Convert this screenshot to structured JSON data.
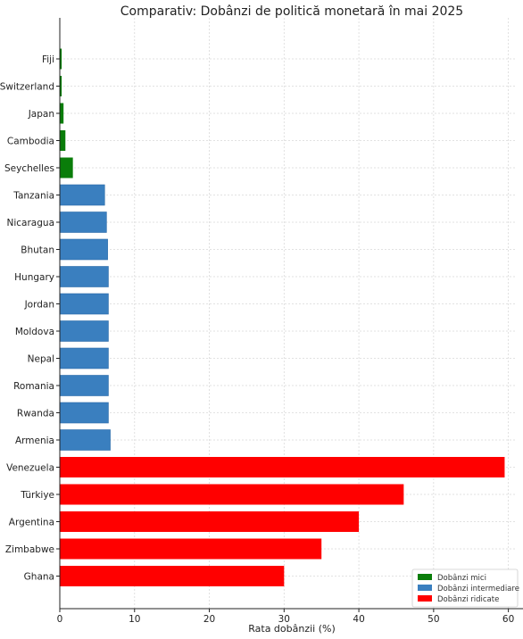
{
  "chart_data": {
    "type": "bar",
    "orientation": "horizontal",
    "title": "Comparativ: Dobânzi de politică monetară în mai 2025",
    "xlabel": "Rata dobânzii (%)",
    "ylabel": "",
    "xlim": [
      0,
      61
    ],
    "xticks": [
      "0",
      "10",
      "20",
      "30",
      "40",
      "50",
      "60"
    ],
    "grid": true,
    "legend_position": "bottom-right",
    "colors": {
      "mici": "#0a7d0a",
      "intermediare": "#3a7fbf",
      "ridicate": "#ff0000"
    },
    "legend": [
      {
        "label": "Dobânzi mici",
        "group": "mici"
      },
      {
        "label": "Dobânzi intermediare",
        "group": "intermediare"
      },
      {
        "label": "Dobânzi ridicate",
        "group": "ridicate"
      }
    ],
    "bars": [
      {
        "country": "Fiji",
        "value": 0.25,
        "group": "mici"
      },
      {
        "country": "Switzerland",
        "value": 0.25,
        "group": "mici"
      },
      {
        "country": "Japan",
        "value": 0.5,
        "group": "mici"
      },
      {
        "country": "Cambodia",
        "value": 0.75,
        "group": "mici"
      },
      {
        "country": "Seychelles",
        "value": 1.75,
        "group": "mici"
      },
      {
        "country": "Tanzania",
        "value": 6.0,
        "group": "intermediare"
      },
      {
        "country": "Nicaragua",
        "value": 6.25,
        "group": "intermediare"
      },
      {
        "country": "Bhutan",
        "value": 6.4,
        "group": "intermediare"
      },
      {
        "country": "Hungary",
        "value": 6.5,
        "group": "intermediare"
      },
      {
        "country": "Jordan",
        "value": 6.5,
        "group": "intermediare"
      },
      {
        "country": "Moldova",
        "value": 6.5,
        "group": "intermediare"
      },
      {
        "country": "Nepal",
        "value": 6.5,
        "group": "intermediare"
      },
      {
        "country": "Romania",
        "value": 6.5,
        "group": "intermediare"
      },
      {
        "country": "Rwanda",
        "value": 6.5,
        "group": "intermediare"
      },
      {
        "country": "Armenia",
        "value": 6.75,
        "group": "intermediare"
      },
      {
        "country": "Venezuela",
        "value": 59.5,
        "group": "ridicate"
      },
      {
        "country": "Türkiye",
        "value": 46.0,
        "group": "ridicate"
      },
      {
        "country": "Argentina",
        "value": 40.0,
        "group": "ridicate"
      },
      {
        "country": "Zimbabwe",
        "value": 35.0,
        "group": "ridicate"
      },
      {
        "country": "Ghana",
        "value": 30.0,
        "group": "ridicate"
      }
    ]
  }
}
